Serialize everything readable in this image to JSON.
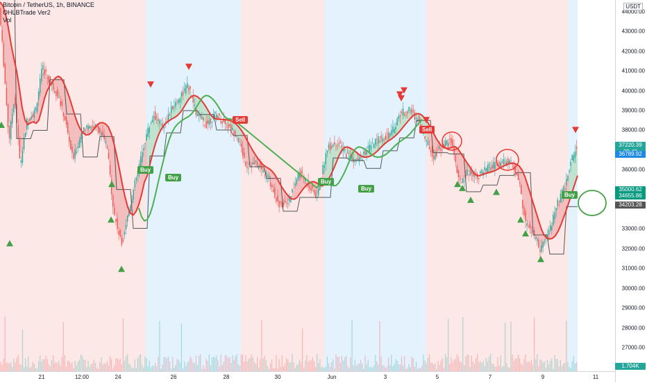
{
  "legend": {
    "symbol_line": "Bitcoin / TetherUS, 1h, BINANCE",
    "indicator_line": "OHLBTrade Ver2",
    "volume_label": "Vol"
  },
  "currency": "USDT",
  "price_axis": {
    "min": 25800,
    "max": 44600,
    "ticks": [
      "44000.00",
      "43000.00",
      "42000.00",
      "41000.00",
      "40000.00",
      "39000.00",
      "38000.00",
      "36000.00",
      "33000.00",
      "32000.00",
      "31000.00",
      "30000.00",
      "29000.00",
      "28000.00",
      "27000.00"
    ]
  },
  "price_tags": [
    {
      "value": "37220.39",
      "sub": "39:49",
      "color": "#26a69a",
      "price": 37220
    },
    {
      "value": "36789.92",
      "color": "#1e88e5",
      "price": 36790
    },
    {
      "value": "35000.62",
      "color": "#089981",
      "price": 35000
    },
    {
      "value": "34655.86",
      "color": "#089981",
      "price": 34656
    },
    {
      "value": "34203.28",
      "color": "#555555",
      "price": 34203
    }
  ],
  "volume_tag": "1.704K",
  "time_axis": [
    "21",
    "12:00",
    "24",
    "26",
    "28",
    "30",
    "Jun",
    "3",
    "5",
    "7",
    "9",
    "11"
  ],
  "colors": {
    "up": "#26a69a",
    "down": "#ef5350",
    "red_zone": "#fde8e8",
    "blue_zone": "#e3f2fd",
    "ema": "#e53935",
    "baseline": "#4caf50",
    "step": "#555555"
  },
  "signals": [
    {
      "label": "Buy",
      "type": "buy"
    },
    {
      "label": "Buy",
      "type": "buy"
    },
    {
      "label": "Sell",
      "type": "sell"
    },
    {
      "label": "Buy",
      "type": "buy"
    },
    {
      "label": "Buy",
      "type": "buy"
    },
    {
      "label": "Sell",
      "type": "sell"
    },
    {
      "label": "Buy",
      "type": "buy"
    }
  ]
}
